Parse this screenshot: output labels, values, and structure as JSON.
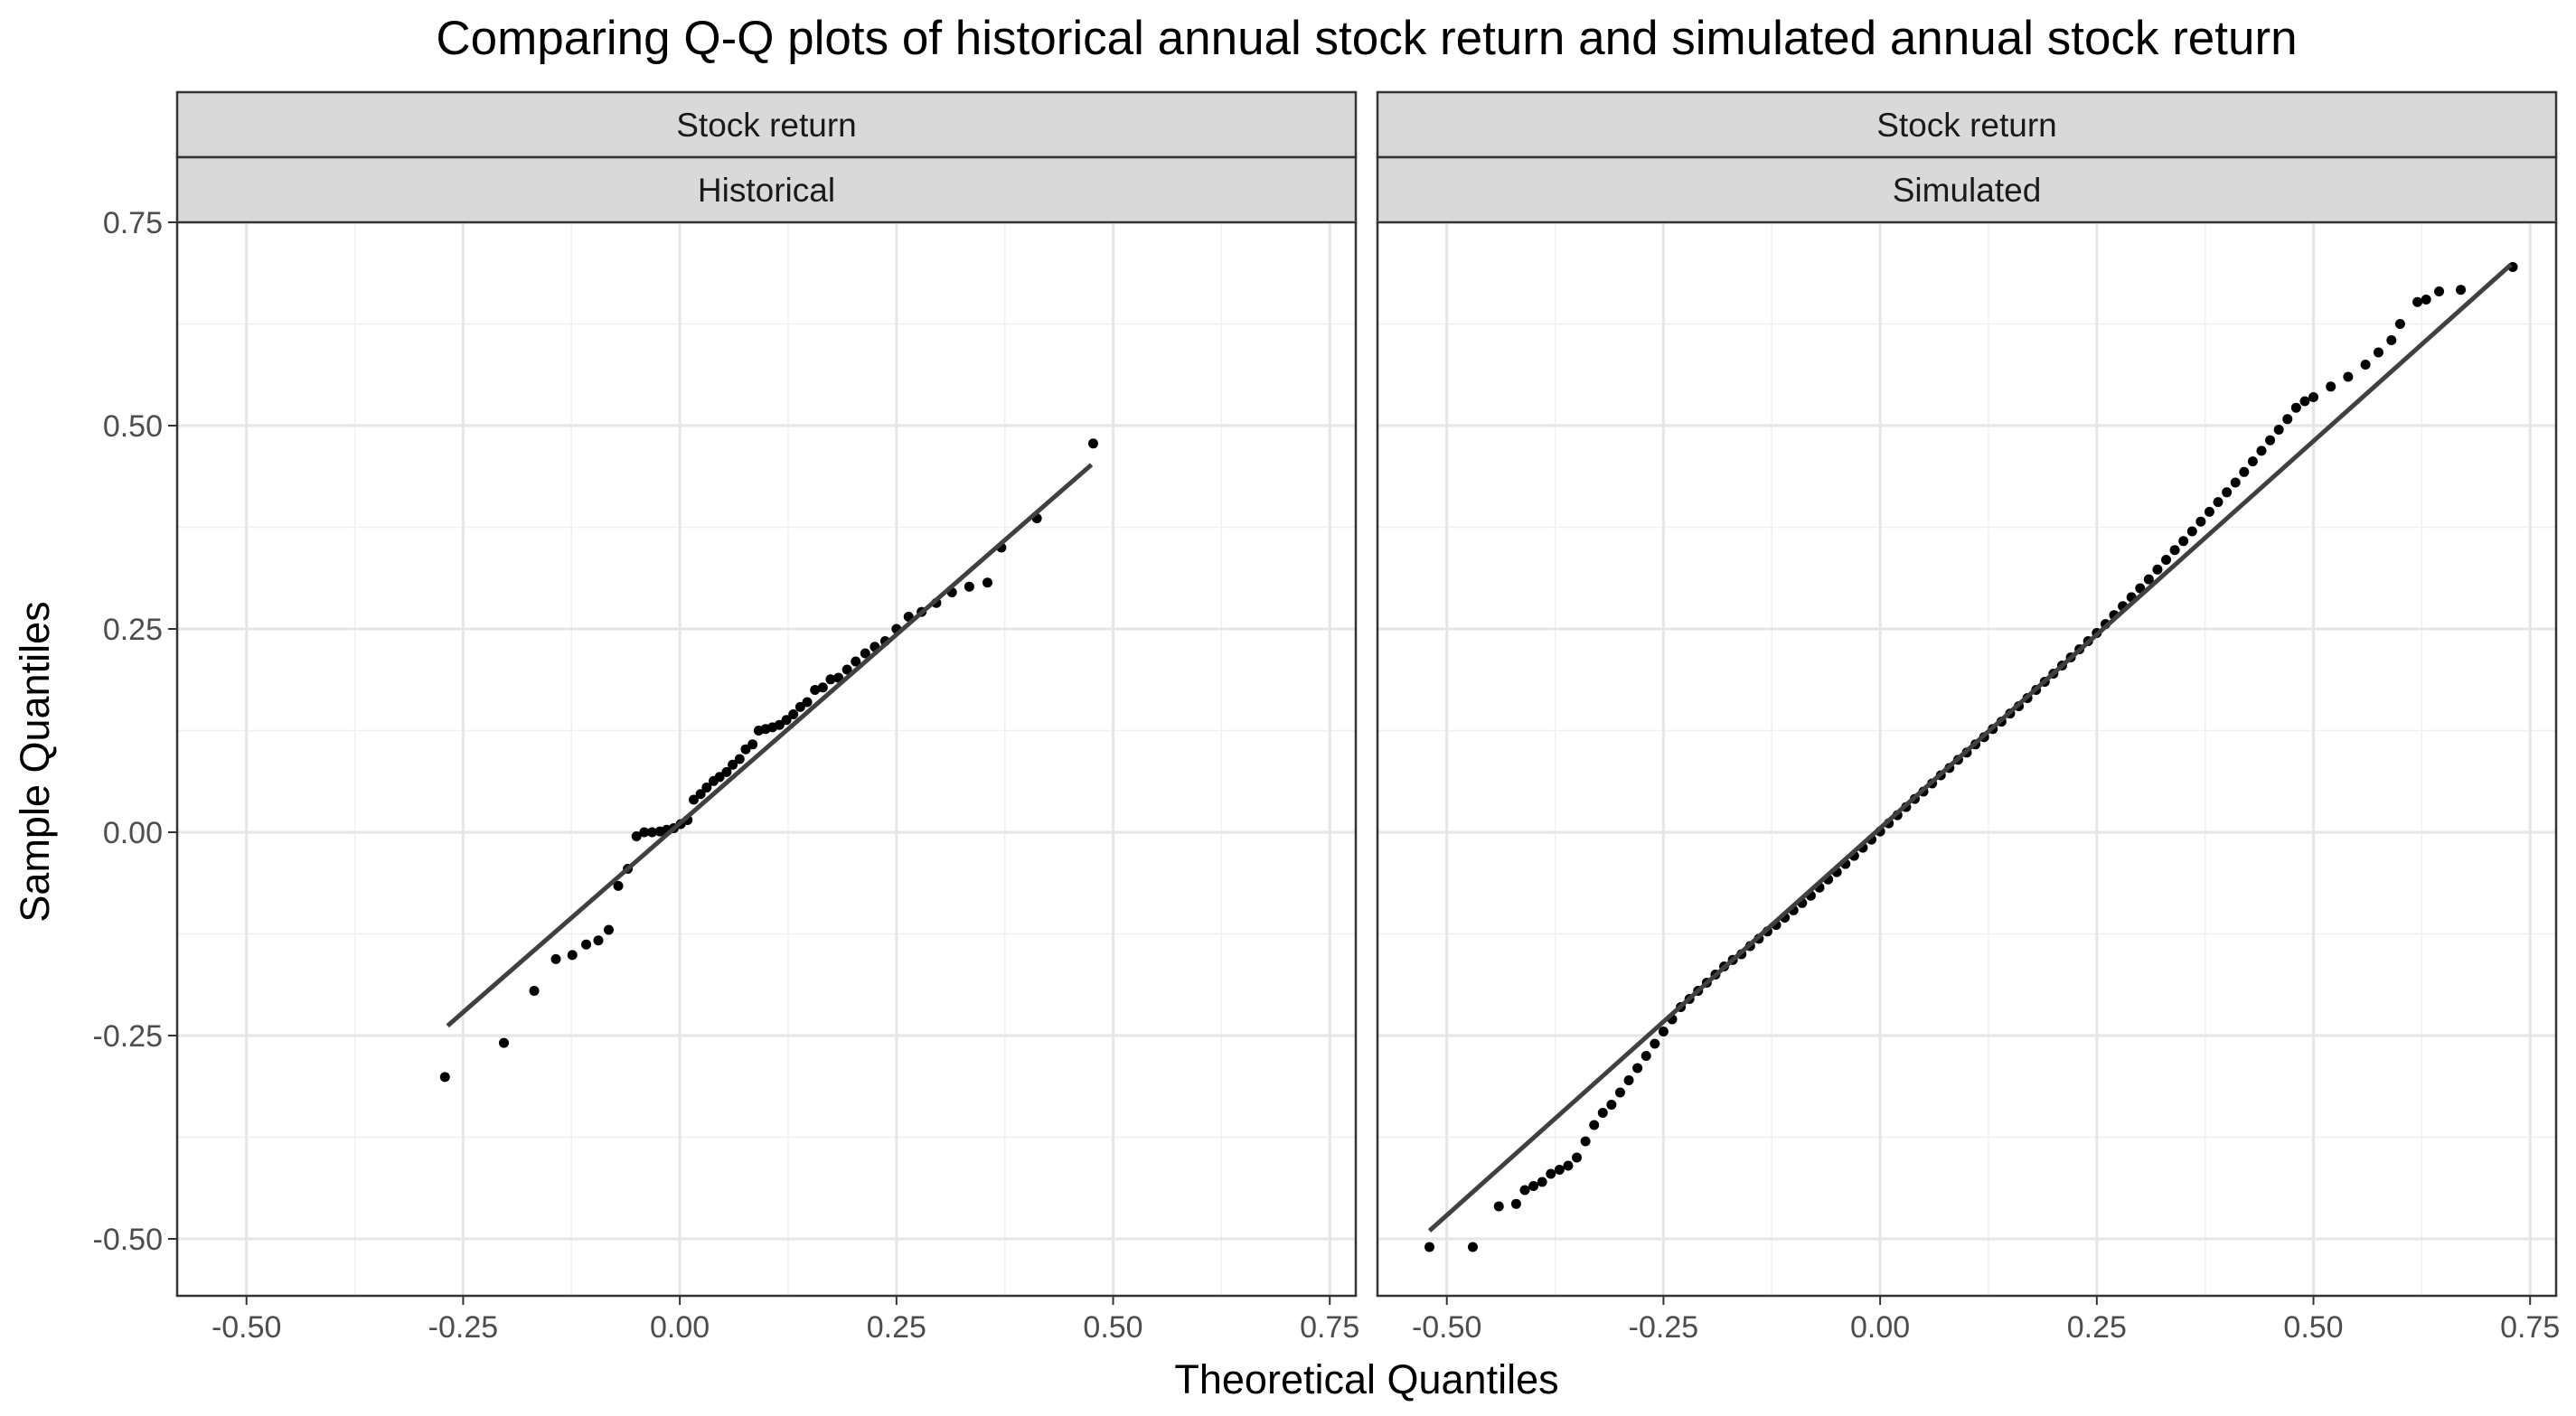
{
  "chart_data": {
    "type": "scatter",
    "title": "Comparing Q-Q plots of historical annual stock return and simulated annual stock return",
    "xlabel": "Theoretical Quantiles",
    "ylabel": "Sample Quantiles",
    "xlim": [
      -0.58,
      0.78
    ],
    "ylim": [
      -0.57,
      0.75
    ],
    "x_ticks": [
      -0.5,
      -0.25,
      0.0,
      0.25,
      0.5,
      0.75
    ],
    "x_tick_labels": [
      "-0.50",
      "-0.25",
      "0.00",
      "0.25",
      "0.50",
      "0.75"
    ],
    "y_ticks": [
      -0.5,
      -0.25,
      0.0,
      0.25,
      0.5,
      0.75
    ],
    "y_tick_labels": [
      "-0.50",
      "-0.25",
      "0.00",
      "0.25",
      "0.50",
      "0.75"
    ],
    "grid": true,
    "panels": [
      {
        "strip_top": "Stock return",
        "strip_bottom": "Historical",
        "series": [
          {
            "kind": "points",
            "points": [
              [
                -0.271,
                -0.301
              ],
              [
                -0.203,
                -0.259
              ],
              [
                -0.168,
                -0.195
              ],
              [
                -0.143,
                -0.156
              ],
              [
                -0.124,
                -0.151
              ],
              [
                -0.108,
                -0.138
              ],
              [
                -0.094,
                -0.133
              ],
              [
                -0.082,
                -0.12
              ],
              [
                -0.071,
                -0.066
              ],
              [
                -0.06,
                -0.045
              ],
              [
                -0.05,
                -0.005
              ],
              [
                -0.041,
                0.0
              ],
              [
                -0.032,
                0.0
              ],
              [
                -0.023,
                0.001
              ],
              [
                -0.015,
                0.003
              ],
              [
                -0.007,
                0.005
              ],
              [
                0.001,
                0.01
              ],
              [
                0.009,
                0.015
              ],
              [
                0.016,
                0.04
              ],
              [
                0.024,
                0.047
              ],
              [
                0.031,
                0.055
              ],
              [
                0.039,
                0.063
              ],
              [
                0.046,
                0.068
              ],
              [
                0.054,
                0.074
              ],
              [
                0.061,
                0.083
              ],
              [
                0.069,
                0.09
              ],
              [
                0.076,
                0.102
              ],
              [
                0.084,
                0.108
              ],
              [
                0.091,
                0.125
              ],
              [
                0.099,
                0.127
              ],
              [
                0.107,
                0.129
              ],
              [
                0.115,
                0.132
              ],
              [
                0.123,
                0.138
              ],
              [
                0.131,
                0.145
              ],
              [
                0.139,
                0.154
              ],
              [
                0.147,
                0.16
              ],
              [
                0.156,
                0.175
              ],
              [
                0.165,
                0.178
              ],
              [
                0.174,
                0.188
              ],
              [
                0.183,
                0.19
              ],
              [
                0.193,
                0.2
              ],
              [
                0.203,
                0.21
              ],
              [
                0.214,
                0.22
              ],
              [
                0.225,
                0.228
              ],
              [
                0.237,
                0.235
              ],
              [
                0.25,
                0.25
              ],
              [
                0.264,
                0.265
              ],
              [
                0.279,
                0.271
              ],
              [
                0.296,
                0.282
              ],
              [
                0.314,
                0.295
              ],
              [
                0.334,
                0.302
              ],
              [
                0.355,
                0.307
              ],
              [
                0.371,
                0.35
              ],
              [
                0.412,
                0.386
              ],
              [
                0.477,
                0.478
              ]
            ]
          },
          {
            "kind": "line",
            "x": [
              -0.268,
              0.475
            ],
            "y": [
              -0.238,
              0.452
            ]
          }
        ]
      },
      {
        "strip_top": "Stock return",
        "strip_bottom": "Simulated",
        "series": [
          {
            "kind": "points",
            "points": [
              [
                -0.52,
                -0.51
              ],
              [
                -0.47,
                -0.51
              ],
              [
                -0.44,
                -0.46
              ],
              [
                -0.42,
                -0.457
              ],
              [
                -0.41,
                -0.44
              ],
              [
                -0.4,
                -0.435
              ],
              [
                -0.39,
                -0.43
              ],
              [
                -0.38,
                -0.42
              ],
              [
                -0.37,
                -0.415
              ],
              [
                -0.36,
                -0.41
              ],
              [
                -0.35,
                -0.4
              ],
              [
                -0.34,
                -0.38
              ],
              [
                -0.33,
                -0.36
              ],
              [
                -0.32,
                -0.345
              ],
              [
                -0.31,
                -0.335
              ],
              [
                -0.3,
                -0.32
              ],
              [
                -0.29,
                -0.305
              ],
              [
                -0.28,
                -0.29
              ],
              [
                -0.27,
                -0.275
              ],
              [
                -0.26,
                -0.26
              ],
              [
                -0.25,
                -0.245
              ],
              [
                -0.24,
                -0.23
              ],
              [
                -0.23,
                -0.215
              ],
              [
                -0.22,
                -0.205
              ],
              [
                -0.21,
                -0.195
              ],
              [
                -0.2,
                -0.185
              ],
              [
                -0.19,
                -0.175
              ],
              [
                -0.18,
                -0.165
              ],
              [
                -0.17,
                -0.157
              ],
              [
                -0.16,
                -0.15
              ],
              [
                -0.15,
                -0.14
              ],
              [
                -0.14,
                -0.131
              ],
              [
                -0.13,
                -0.122
              ],
              [
                -0.12,
                -0.114
              ],
              [
                -0.11,
                -0.105
              ],
              [
                -0.1,
                -0.096
              ],
              [
                -0.09,
                -0.087
              ],
              [
                -0.08,
                -0.078
              ],
              [
                -0.07,
                -0.068
              ],
              [
                -0.06,
                -0.058
              ],
              [
                -0.05,
                -0.049
              ],
              [
                -0.04,
                -0.039
              ],
              [
                -0.03,
                -0.029
              ],
              [
                -0.02,
                -0.019
              ],
              [
                -0.01,
                -0.009
              ],
              [
                0.0,
                0.001
              ],
              [
                0.01,
                0.011
              ],
              [
                0.02,
                0.021
              ],
              [
                0.03,
                0.031
              ],
              [
                0.04,
                0.041
              ],
              [
                0.05,
                0.05
              ],
              [
                0.06,
                0.06
              ],
              [
                0.07,
                0.07
              ],
              [
                0.08,
                0.079
              ],
              [
                0.09,
                0.089
              ],
              [
                0.1,
                0.098
              ],
              [
                0.11,
                0.108
              ],
              [
                0.12,
                0.117
              ],
              [
                0.13,
                0.127
              ],
              [
                0.14,
                0.136
              ],
              [
                0.15,
                0.146
              ],
              [
                0.16,
                0.155
              ],
              [
                0.17,
                0.165
              ],
              [
                0.18,
                0.175
              ],
              [
                0.19,
                0.185
              ],
              [
                0.2,
                0.195
              ],
              [
                0.21,
                0.205
              ],
              [
                0.22,
                0.215
              ],
              [
                0.23,
                0.225
              ],
              [
                0.24,
                0.235
              ],
              [
                0.25,
                0.245
              ],
              [
                0.26,
                0.256
              ],
              [
                0.27,
                0.267
              ],
              [
                0.28,
                0.278
              ],
              [
                0.29,
                0.289
              ],
              [
                0.3,
                0.3
              ],
              [
                0.31,
                0.311
              ],
              [
                0.32,
                0.323
              ],
              [
                0.33,
                0.335
              ],
              [
                0.34,
                0.347
              ],
              [
                0.35,
                0.358
              ],
              [
                0.36,
                0.37
              ],
              [
                0.37,
                0.382
              ],
              [
                0.38,
                0.394
              ],
              [
                0.39,
                0.406
              ],
              [
                0.4,
                0.418
              ],
              [
                0.41,
                0.43
              ],
              [
                0.42,
                0.443
              ],
              [
                0.43,
                0.456
              ],
              [
                0.44,
                0.469
              ],
              [
                0.45,
                0.482
              ],
              [
                0.46,
                0.495
              ],
              [
                0.47,
                0.508
              ],
              [
                0.48,
                0.522
              ],
              [
                0.49,
                0.53
              ],
              [
                0.5,
                0.535
              ],
              [
                0.52,
                0.548
              ],
              [
                0.54,
                0.56
              ],
              [
                0.56,
                0.575
              ],
              [
                0.575,
                0.59
              ],
              [
                0.59,
                0.605
              ],
              [
                0.6,
                0.625
              ],
              [
                0.62,
                0.652
              ],
              [
                0.63,
                0.655
              ],
              [
                0.645,
                0.665
              ],
              [
                0.67,
                0.667
              ],
              [
                0.73,
                0.695
              ]
            ]
          },
          {
            "kind": "line",
            "x": [
              -0.52,
              0.728
            ],
            "y": [
              -0.49,
              0.698
            ]
          }
        ]
      }
    ]
  }
}
